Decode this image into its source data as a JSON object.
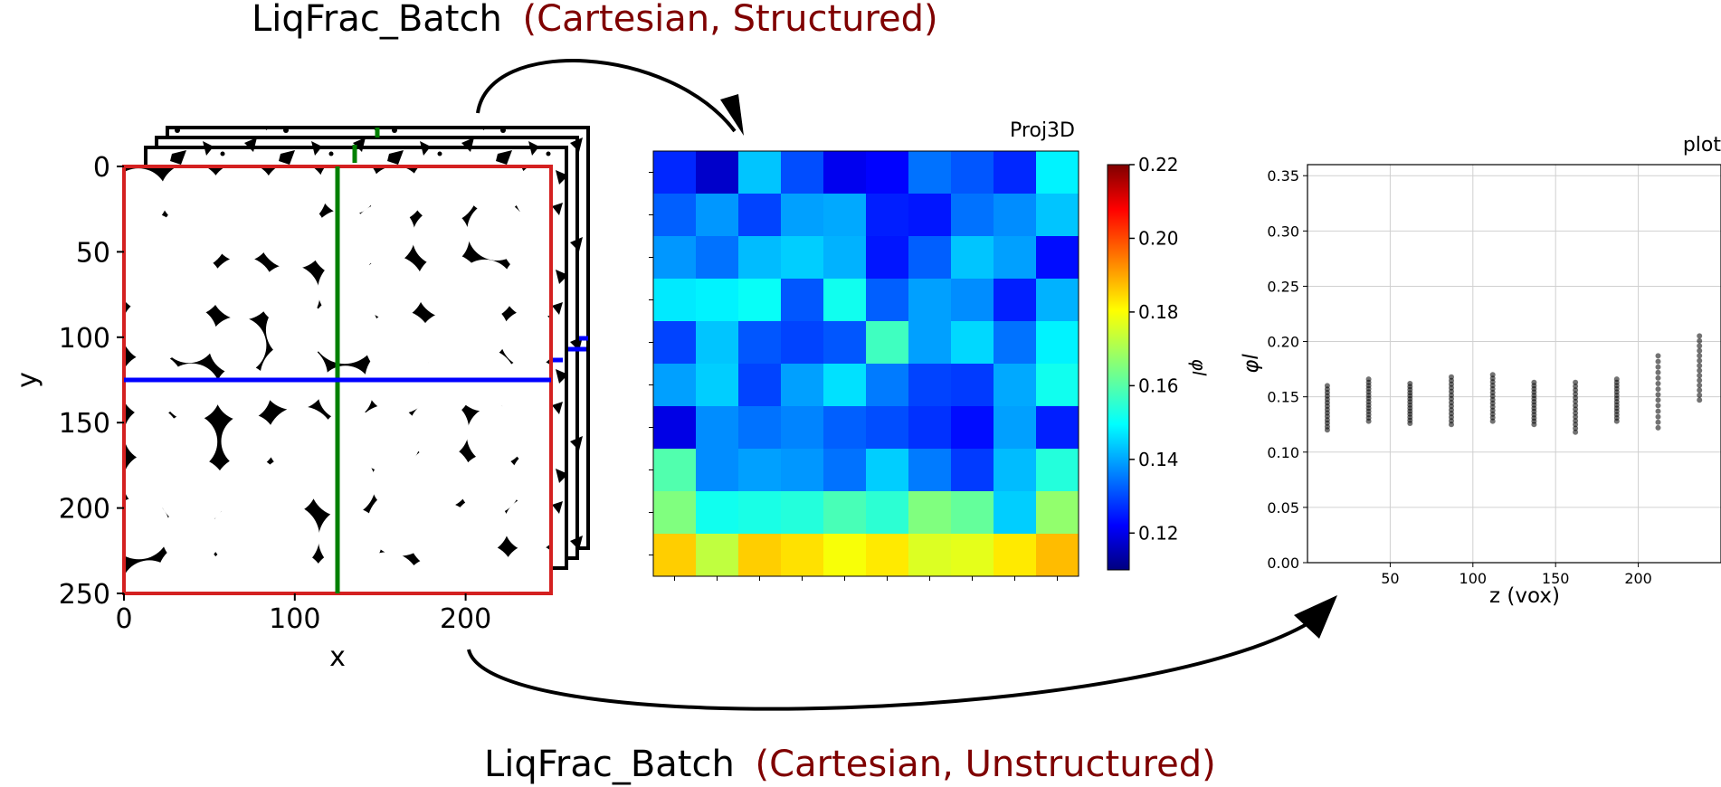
{
  "titles": {
    "top_prefix": "LiqFrac_Batch",
    "top_suffix": "(Cartesian, Structured)",
    "bottom_prefix": "LiqFrac_Batch",
    "bottom_suffix": "(Cartesian, Unstructured)"
  },
  "slice_image": {
    "x_label": "x",
    "y_label": "y",
    "x_ticks": [
      "0",
      "100",
      "200"
    ],
    "y_ticks": [
      "0",
      "50",
      "100",
      "150",
      "200",
      "250"
    ]
  },
  "heatmap": {
    "title": "Proj3D",
    "colorbar_label": "φl",
    "colorbar_ticks": [
      "0.12",
      "0.14",
      "0.16",
      "0.18",
      "0.20",
      "0.22"
    ]
  },
  "colors": {
    "red_frame": "#d42020",
    "green_line": "#008000",
    "blue_line": "#0000ff",
    "dark_red_text": "#7f0000"
  },
  "chart_data": {
    "type": "scatter",
    "title": "plot",
    "xlabel": "z (vox)",
    "ylabel": "φl",
    "xlim": [
      0,
      250
    ],
    "ylim": [
      0,
      0.36
    ],
    "x_ticks": [
      50,
      100,
      150,
      200
    ],
    "y_ticks": [
      0.0,
      0.05,
      0.1,
      0.15,
      0.2,
      0.25,
      0.3,
      0.35
    ],
    "grid": true,
    "series": [
      {
        "x": [
          12,
          37,
          62,
          87,
          112,
          137,
          162,
          187,
          212,
          237
        ],
        "y_ranges": [
          [
            0.12,
            0.16
          ],
          [
            0.128,
            0.166
          ],
          [
            0.126,
            0.162
          ],
          [
            0.125,
            0.168
          ],
          [
            0.128,
            0.17
          ],
          [
            0.125,
            0.163
          ],
          [
            0.118,
            0.163
          ],
          [
            0.128,
            0.166
          ],
          [
            0.122,
            0.187
          ],
          [
            0.147,
            0.205
          ]
        ]
      }
    ]
  }
}
